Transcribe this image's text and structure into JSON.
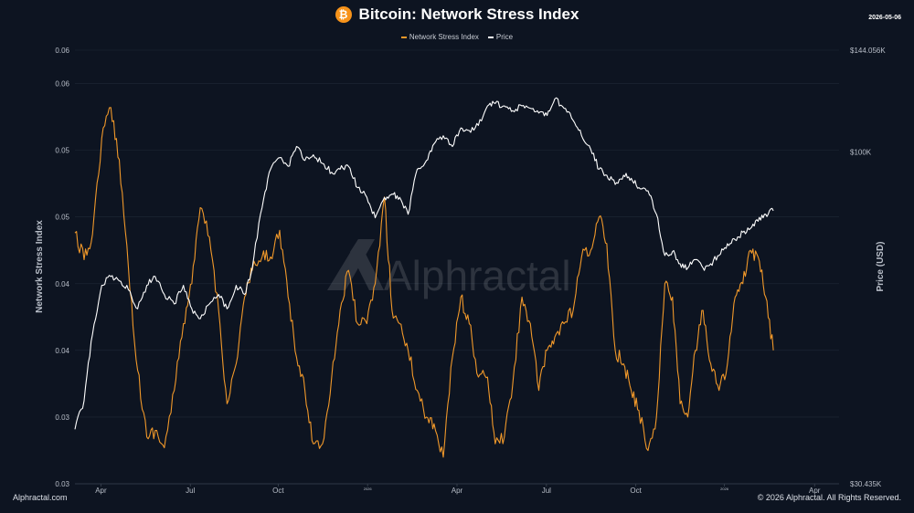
{
  "header": {
    "title": "Bitcoin: Network Stress Index",
    "date": "2026-05-06",
    "logo_glyph": "₿"
  },
  "footer": {
    "left": "Alphractal.com",
    "right": "© 2026 Alphractal. All Rights Reserved."
  },
  "watermark": "Alphractal",
  "colors": {
    "background": "#0d1421",
    "stress": "#f0982a",
    "price": "#ffffff",
    "axis_text": "#b8bec8",
    "grid": "#1f2937",
    "bitcoin": "#f7931a"
  },
  "chart_data": {
    "type": "line",
    "legend_position": "top-center",
    "grid": true,
    "x_tick_labels": [
      "Apr",
      "Jul",
      "Oct",
      "2026",
      "Apr",
      "Jul",
      "Oct",
      "2026",
      "Apr"
    ],
    "x_ticks_t": [
      0.034,
      0.151,
      0.266,
      0.383,
      0.5,
      0.617,
      0.734,
      0.85,
      0.968
    ],
    "left_axis": {
      "label": "Network Stress Index",
      "tick_labels": [
        "0.06",
        "0.06",
        "0.05",
        "0.05",
        "0.04",
        "0.04",
        "0.03",
        "0.03"
      ],
      "ticks_value": [
        0.0625,
        0.06,
        0.055,
        0.05,
        0.045,
        0.04,
        0.035,
        0.03
      ],
      "range": [
        0.03,
        0.0625
      ]
    },
    "right_axis": {
      "label": "Price (USD)",
      "scale": "log",
      "tick_labels": [
        "$144.056K",
        "$100K",
        "$30.435K"
      ],
      "ticks_value": [
        144056,
        100000,
        30435
      ],
      "range": [
        30435,
        144056
      ]
    },
    "series": [
      {
        "name": "Network Stress Index",
        "axis": "left",
        "points": [
          [
            0.0,
            0.0488
          ],
          [
            0.012,
            0.0468
          ],
          [
            0.023,
            0.0487
          ],
          [
            0.035,
            0.0559
          ],
          [
            0.047,
            0.0582
          ],
          [
            0.058,
            0.0543
          ],
          [
            0.07,
            0.0462
          ],
          [
            0.082,
            0.0385
          ],
          [
            0.094,
            0.0335
          ],
          [
            0.105,
            0.034
          ],
          [
            0.117,
            0.0327
          ],
          [
            0.13,
            0.037
          ],
          [
            0.142,
            0.042
          ],
          [
            0.153,
            0.045
          ],
          [
            0.164,
            0.0507
          ],
          [
            0.176,
            0.0485
          ],
          [
            0.188,
            0.043
          ],
          [
            0.199,
            0.036
          ],
          [
            0.211,
            0.039
          ],
          [
            0.222,
            0.044
          ],
          [
            0.232,
            0.046
          ],
          [
            0.245,
            0.047
          ],
          [
            0.256,
            0.047
          ],
          [
            0.268,
            0.049
          ],
          [
            0.279,
            0.044
          ],
          [
            0.29,
            0.0395
          ],
          [
            0.301,
            0.037
          ],
          [
            0.312,
            0.033
          ],
          [
            0.324,
            0.033
          ],
          [
            0.336,
            0.038
          ],
          [
            0.347,
            0.043
          ],
          [
            0.358,
            0.046
          ],
          [
            0.37,
            0.042
          ],
          [
            0.382,
            0.042
          ],
          [
            0.393,
            0.045
          ],
          [
            0.405,
            0.0515
          ],
          [
            0.415,
            0.043
          ],
          [
            0.425,
            0.042
          ],
          [
            0.436,
            0.04
          ],
          [
            0.448,
            0.037
          ],
          [
            0.46,
            0.035
          ],
          [
            0.47,
            0.0345
          ],
          [
            0.482,
            0.032
          ],
          [
            0.494,
            0.0395
          ],
          [
            0.505,
            0.044
          ],
          [
            0.516,
            0.042
          ],
          [
            0.528,
            0.038
          ],
          [
            0.54,
            0.038
          ],
          [
            0.55,
            0.033
          ],
          [
            0.562,
            0.0335
          ],
          [
            0.573,
            0.0375
          ],
          [
            0.585,
            0.044
          ],
          [
            0.596,
            0.042
          ],
          [
            0.607,
            0.037
          ],
          [
            0.618,
            0.04
          ],
          [
            0.628,
            0.041
          ],
          [
            0.64,
            0.042
          ],
          [
            0.652,
            0.043
          ],
          [
            0.663,
            0.047
          ],
          [
            0.675,
            0.0475
          ],
          [
            0.686,
            0.05
          ],
          [
            0.696,
            0.048
          ],
          [
            0.707,
            0.04
          ],
          [
            0.718,
            0.039
          ],
          [
            0.728,
            0.037
          ],
          [
            0.738,
            0.0355
          ],
          [
            0.75,
            0.0325
          ],
          [
            0.761,
            0.035
          ],
          [
            0.772,
            0.045
          ],
          [
            0.782,
            0.044
          ],
          [
            0.792,
            0.036
          ],
          [
            0.802,
            0.035
          ],
          [
            0.812,
            0.04
          ],
          [
            0.822,
            0.043
          ],
          [
            0.832,
            0.039
          ],
          [
            0.843,
            0.037
          ],
          [
            0.854,
            0.039
          ],
          [
            0.864,
            0.044
          ],
          [
            0.874,
            0.045
          ],
          [
            0.884,
            0.0475
          ],
          [
            0.894,
            0.047
          ],
          [
            0.904,
            0.044
          ],
          [
            0.914,
            0.04
          ]
        ]
      },
      {
        "name": "Price",
        "axis": "right",
        "points": [
          [
            0.0,
            37000
          ],
          [
            0.012,
            41000
          ],
          [
            0.023,
            52000
          ],
          [
            0.035,
            62000
          ],
          [
            0.047,
            64000
          ],
          [
            0.058,
            63000
          ],
          [
            0.07,
            61000
          ],
          [
            0.082,
            57000
          ],
          [
            0.094,
            62000
          ],
          [
            0.105,
            64000
          ],
          [
            0.117,
            60000
          ],
          [
            0.13,
            58000
          ],
          [
            0.142,
            62000
          ],
          [
            0.153,
            57000
          ],
          [
            0.164,
            55000
          ],
          [
            0.176,
            58000
          ],
          [
            0.188,
            60000
          ],
          [
            0.199,
            57000
          ],
          [
            0.211,
            62000
          ],
          [
            0.222,
            60000
          ],
          [
            0.232,
            66000
          ],
          [
            0.245,
            82000
          ],
          [
            0.256,
            94000
          ],
          [
            0.268,
            98000
          ],
          [
            0.279,
            95000
          ],
          [
            0.29,
            102000
          ],
          [
            0.301,
            97000
          ],
          [
            0.312,
            99000
          ],
          [
            0.324,
            96000
          ],
          [
            0.336,
            93000
          ],
          [
            0.347,
            94000
          ],
          [
            0.358,
            95000
          ],
          [
            0.37,
            88000
          ],
          [
            0.382,
            85000
          ],
          [
            0.393,
            79000
          ],
          [
            0.405,
            85000
          ],
          [
            0.415,
            86000
          ],
          [
            0.425,
            85000
          ],
          [
            0.436,
            80000
          ],
          [
            0.448,
            94000
          ],
          [
            0.46,
            97000
          ],
          [
            0.47,
            103000
          ],
          [
            0.482,
            106000
          ],
          [
            0.494,
            102000
          ],
          [
            0.505,
            109000
          ],
          [
            0.516,
            108000
          ],
          [
            0.528,
            110000
          ],
          [
            0.54,
            118000
          ],
          [
            0.55,
            119000
          ],
          [
            0.562,
            118000
          ],
          [
            0.573,
            116000
          ],
          [
            0.585,
            118000
          ],
          [
            0.596,
            117000
          ],
          [
            0.607,
            115000
          ],
          [
            0.618,
            114000
          ],
          [
            0.628,
            121000
          ],
          [
            0.64,
            117000
          ],
          [
            0.652,
            112000
          ],
          [
            0.663,
            106000
          ],
          [
            0.675,
            101000
          ],
          [
            0.686,
            94000
          ],
          [
            0.696,
            92000
          ],
          [
            0.707,
            89000
          ],
          [
            0.718,
            92000
          ],
          [
            0.728,
            91000
          ],
          [
            0.738,
            88000
          ],
          [
            0.75,
            87000
          ],
          [
            0.761,
            80000
          ],
          [
            0.772,
            69000
          ],
          [
            0.782,
            70000
          ],
          [
            0.792,
            67000
          ],
          [
            0.802,
            66000
          ],
          [
            0.812,
            68000
          ],
          [
            0.822,
            66000
          ],
          [
            0.832,
            67000
          ],
          [
            0.843,
            69000
          ],
          [
            0.854,
            72000
          ],
          [
            0.864,
            73000
          ],
          [
            0.874,
            75000
          ],
          [
            0.884,
            76000
          ],
          [
            0.894,
            78000
          ],
          [
            0.904,
            80000
          ],
          [
            0.914,
            81000
          ]
        ]
      }
    ]
  }
}
